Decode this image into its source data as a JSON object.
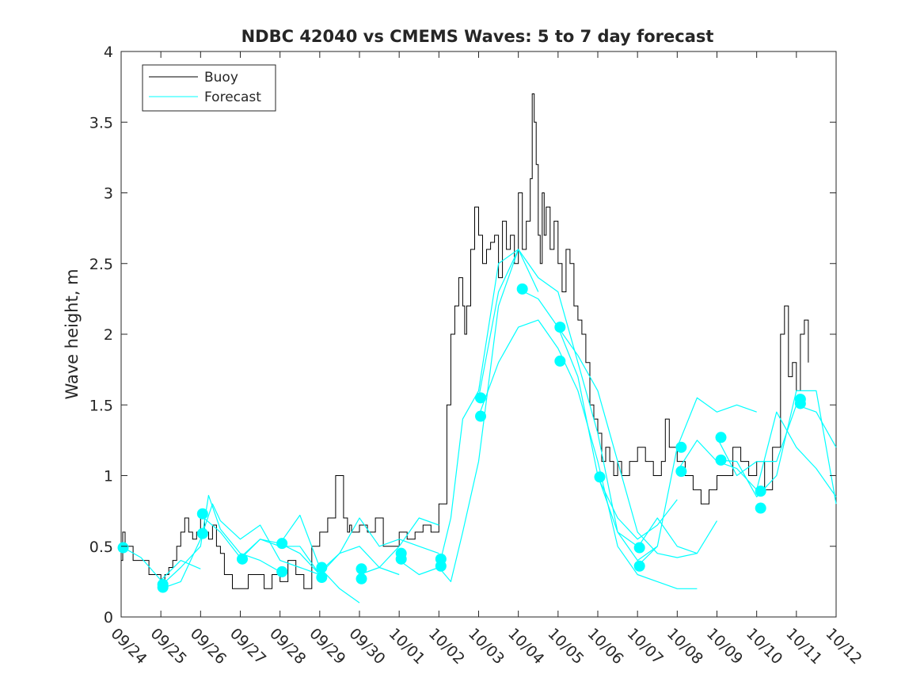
{
  "chart_data": {
    "type": "line",
    "title": "NDBC 42040 vs CMEMS Waves: 5 to 7 day forecast",
    "ylabel": "Wave height, m",
    "xlabel": "",
    "xlim": [
      0,
      18
    ],
    "ylim": [
      0,
      4
    ],
    "grid": false,
    "legend_position": "top-left",
    "x_tick_labels": [
      "09/24",
      "09/25",
      "09/26",
      "09/27",
      "09/28",
      "09/29",
      "09/30",
      "10/01",
      "10/02",
      "10/03",
      "10/04",
      "10/05",
      "10/06",
      "10/07",
      "10/08",
      "10/09",
      "10/10",
      "10/11",
      "10/12"
    ],
    "y_ticks": [
      0,
      0.5,
      1,
      1.5,
      2,
      2.5,
      3,
      3.5,
      4
    ],
    "y_tick_labels": [
      "0",
      "0.5",
      "1",
      "1.5",
      "2",
      "2.5",
      "3",
      "3.5",
      "4"
    ],
    "colors": {
      "buoy": "#000000",
      "forecast": "#00ffff",
      "axes": "#262626"
    },
    "legend": [
      {
        "name": "Buoy",
        "color": "#000000"
      },
      {
        "name": "Forecast",
        "color": "#00ffff"
      }
    ],
    "buoy": {
      "name": "Buoy",
      "x": [
        0,
        0.04,
        0.1,
        0.2,
        0.3,
        0.5,
        0.7,
        0.9,
        1.0,
        1.1,
        1.2,
        1.3,
        1.4,
        1.5,
        1.6,
        1.7,
        1.8,
        1.9,
        2.0,
        2.1,
        2.2,
        2.3,
        2.4,
        2.5,
        2.6,
        2.8,
        3.0,
        3.2,
        3.4,
        3.6,
        3.8,
        4.0,
        4.2,
        4.4,
        4.6,
        4.8,
        5.0,
        5.2,
        5.4,
        5.6,
        5.7,
        5.75,
        5.8,
        5.9,
        6.0,
        6.2,
        6.4,
        6.6,
        6.8,
        7.0,
        7.2,
        7.4,
        7.6,
        7.8,
        8.0,
        8.2,
        8.3,
        8.4,
        8.5,
        8.6,
        8.65,
        8.7,
        8.8,
        8.9,
        9.0,
        9.1,
        9.2,
        9.3,
        9.4,
        9.5,
        9.6,
        9.7,
        9.8,
        9.9,
        10.0,
        10.1,
        10.2,
        10.3,
        10.35,
        10.4,
        10.45,
        10.5,
        10.55,
        10.6,
        10.65,
        10.7,
        10.8,
        10.9,
        11.0,
        11.1,
        11.2,
        11.3,
        11.4,
        11.5,
        11.6,
        11.7,
        11.8,
        11.9,
        12.0,
        12.1,
        12.2,
        12.3,
        12.4,
        12.5,
        12.6,
        12.8,
        13.0,
        13.2,
        13.4,
        13.6,
        13.7,
        13.8,
        14.0,
        14.2,
        14.4,
        14.6,
        14.8,
        15.0,
        15.2,
        15.4,
        15.6,
        15.8,
        16.0,
        16.2,
        16.4,
        16.6,
        16.7,
        16.8,
        16.9,
        17.0,
        17.1,
        17.2,
        17.3
      ],
      "values": [
        0.4,
        0.6,
        0.5,
        0.5,
        0.4,
        0.4,
        0.3,
        0.3,
        0.25,
        0.3,
        0.35,
        0.4,
        0.5,
        0.6,
        0.7,
        0.6,
        0.55,
        0.6,
        0.7,
        0.6,
        0.55,
        0.65,
        0.5,
        0.45,
        0.3,
        0.2,
        0.2,
        0.3,
        0.3,
        0.2,
        0.3,
        0.25,
        0.4,
        0.3,
        0.2,
        0.5,
        0.6,
        0.7,
        1.0,
        0.7,
        0.6,
        0.65,
        0.6,
        0.6,
        0.65,
        0.6,
        0.7,
        0.5,
        0.5,
        0.6,
        0.55,
        0.6,
        0.65,
        0.6,
        0.8,
        1.5,
        2.0,
        2.2,
        2.4,
        2.2,
        2.0,
        2.2,
        2.6,
        2.9,
        2.7,
        2.5,
        2.6,
        2.65,
        2.7,
        2.4,
        2.8,
        2.6,
        2.7,
        2.5,
        3.0,
        2.6,
        2.8,
        3.1,
        3.7,
        3.5,
        3.2,
        2.7,
        2.5,
        3.0,
        2.7,
        2.9,
        2.6,
        2.8,
        2.5,
        2.3,
        2.6,
        2.5,
        2.2,
        2.1,
        2.0,
        1.8,
        1.5,
        1.4,
        1.3,
        1.1,
        1.2,
        1.1,
        1.0,
        1.1,
        1.0,
        1.1,
        1.2,
        1.1,
        1.0,
        1.1,
        1.4,
        1.2,
        1.1,
        1.0,
        0.9,
        0.8,
        0.9,
        1.0,
        1.0,
        1.2,
        1.1,
        1.0,
        1.1,
        0.9,
        1.2,
        2.0,
        2.2,
        1.7,
        1.8,
        1.6,
        2.0,
        2.1,
        1.8
      ]
    },
    "forecast": {
      "name": "Forecast",
      "series": [
        {
          "x": [
            0,
            0.5,
            1.0,
            1.5,
            2.0
          ],
          "values": [
            0.5,
            0.42,
            0.26,
            0.4,
            0.34
          ]
        },
        {
          "x": [
            1.0,
            1.5,
            2.0,
            2.2,
            2.5,
            3.0,
            3.5,
            4.0
          ],
          "values": [
            0.22,
            0.35,
            0.5,
            0.86,
            0.62,
            0.45,
            0.4,
            0.32
          ]
        },
        {
          "x": [
            1.0,
            1.5,
            2.0,
            2.3,
            2.5,
            3.0,
            3.5,
            4.0,
            4.5,
            5.0
          ],
          "values": [
            0.2,
            0.25,
            0.55,
            0.8,
            0.68,
            0.55,
            0.65,
            0.4,
            0.35,
            0.3
          ]
        },
        {
          "x": [
            2.0,
            2.5,
            3.0,
            3.5,
            4.0,
            4.5,
            5.0
          ],
          "values": [
            0.72,
            0.6,
            0.42,
            0.55,
            0.5,
            0.5,
            0.3
          ]
        },
        {
          "x": [
            3.0,
            3.5,
            4.0,
            4.5,
            5.0,
            5.5,
            6.0
          ],
          "values": [
            0.41,
            0.55,
            0.52,
            0.72,
            0.35,
            0.2,
            0.1
          ]
        },
        {
          "x": [
            4.0,
            4.5,
            5.0,
            5.5,
            6.0,
            6.5,
            7.0
          ],
          "values": [
            0.52,
            0.45,
            0.3,
            0.45,
            0.5,
            0.35,
            0.3
          ]
        },
        {
          "x": [
            5.0,
            5.5,
            6.0,
            6.5,
            7.0,
            7.5,
            8.0
          ],
          "values": [
            0.32,
            0.45,
            0.7,
            0.5,
            0.55,
            0.5,
            0.45
          ]
        },
        {
          "x": [
            6.0,
            6.5,
            7.0,
            7.5,
            8.0
          ],
          "values": [
            0.3,
            0.35,
            0.5,
            0.7,
            0.65
          ]
        },
        {
          "x": [
            7.0,
            7.5,
            8.0,
            8.3,
            8.6,
            9.0,
            9.5,
            10.0
          ],
          "values": [
            0.4,
            0.3,
            0.35,
            0.7,
            1.4,
            1.6,
            2.5,
            2.6
          ]
        },
        {
          "x": [
            8.0,
            8.3,
            8.6,
            9.0,
            9.5,
            10.0,
            10.5
          ],
          "values": [
            0.35,
            0.25,
            0.6,
            1.1,
            2.2,
            2.6,
            2.3
          ]
        },
        {
          "x": [
            9.0,
            9.5,
            10.0,
            10.5,
            11.0,
            11.5,
            12.0,
            12.5,
            13.0,
            13.5
          ],
          "values": [
            1.55,
            2.3,
            2.6,
            2.4,
            2.3,
            1.8,
            1.3,
            0.6,
            0.4,
            0.5
          ]
        },
        {
          "x": [
            9.0,
            9.5,
            10.0,
            10.5,
            11.0,
            11.5,
            12.0,
            12.5,
            13.0,
            13.5,
            14.0,
            14.5
          ],
          "values": [
            1.42,
            1.8,
            2.05,
            2.1,
            1.9,
            1.6,
            1.1,
            0.5,
            0.3,
            0.25,
            0.2,
            0.2
          ]
        },
        {
          "x": [
            10.0,
            10.5,
            11.0,
            11.5,
            12.0,
            12.5,
            13.0
          ],
          "values": [
            2.32,
            2.25,
            2.05,
            1.7,
            1.0,
            0.6,
            0.5
          ]
        },
        {
          "x": [
            11.0,
            11.5,
            12.0,
            12.5,
            13.0,
            13.5,
            14.0,
            14.5
          ],
          "values": [
            2.05,
            1.85,
            1.6,
            1.1,
            0.6,
            0.45,
            0.42,
            0.45
          ]
        },
        {
          "x": [
            12.0,
            12.5,
            13.0,
            13.5,
            14.0
          ],
          "values": [
            0.99,
            0.7,
            0.55,
            0.65,
            0.83
          ]
        },
        {
          "x": [
            13.0,
            13.5,
            14.0,
            14.5,
            15.0
          ],
          "values": [
            0.49,
            0.7,
            0.5,
            0.45,
            0.68
          ]
        },
        {
          "x": [
            13.0,
            13.5,
            14.0,
            14.5,
            15.0,
            15.5,
            16.0
          ],
          "values": [
            0.36,
            0.5,
            1.2,
            1.55,
            1.45,
            1.5,
            1.45
          ]
        },
        {
          "x": [
            14.0,
            14.5,
            15.0,
            15.5,
            16.0,
            16.5,
            17.0,
            17.5,
            18.0
          ],
          "values": [
            1.03,
            1.25,
            1.1,
            1.05,
            0.9,
            1.45,
            1.2,
            1.05,
            0.85
          ]
        },
        {
          "x": [
            15.0,
            15.5,
            16.0,
            16.5,
            17.0,
            17.5,
            18.0
          ],
          "values": [
            1.27,
            1.0,
            1.1,
            1.1,
            1.5,
            1.45,
            1.2
          ]
        },
        {
          "x": [
            15.0,
            15.5,
            16.0,
            16.5,
            17.0,
            17.5,
            18.0
          ],
          "values": [
            1.11,
            1.1,
            0.85,
            1.0,
            1.6,
            1.6,
            0.8
          ]
        }
      ],
      "markers": {
        "x": [
          0.05,
          1.05,
          1.05,
          2.05,
          2.05,
          3.05,
          4.05,
          4.05,
          5.05,
          5.05,
          6.05,
          6.05,
          7.05,
          7.05,
          8.05,
          8.05,
          9.05,
          9.05,
          10.1,
          11.05,
          11.05,
          12.05,
          13.05,
          13.05,
          14.1,
          14.1,
          15.1,
          15.1,
          16.1,
          16.1,
          17.1,
          17.1
        ],
        "values": [
          0.49,
          0.23,
          0.21,
          0.73,
          0.59,
          0.41,
          0.52,
          0.32,
          0.35,
          0.28,
          0.34,
          0.27,
          0.45,
          0.41,
          0.41,
          0.36,
          1.55,
          1.42,
          2.32,
          2.05,
          1.81,
          0.99,
          0.49,
          0.36,
          1.2,
          1.03,
          1.27,
          1.11,
          0.89,
          0.77,
          1.54,
          1.51
        ]
      }
    }
  }
}
